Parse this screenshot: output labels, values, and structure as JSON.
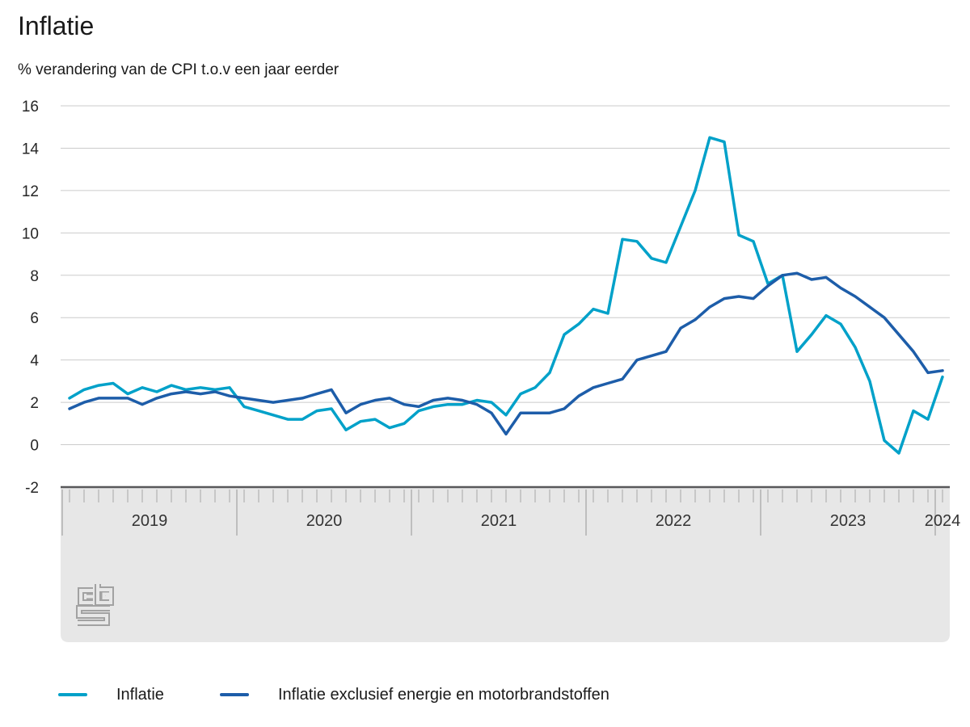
{
  "title": "Inflatie",
  "subtitle": "% verandering van de CPI t.o.v een jaar eerder",
  "source_logo_icon": "cbs-logo",
  "legend": {
    "position": "bottom",
    "items": [
      {
        "label": "Inflatie",
        "color": "#00a1c9"
      },
      {
        "label": "Inflatie exclusief energie en motorbrandstoffen",
        "color": "#1d5da9"
      }
    ]
  },
  "chart_data": {
    "type": "line",
    "title": "Inflatie",
    "subtitle": "% verandering van de CPI t.o.v een jaar eerder",
    "xlabel": "",
    "ylabel": "%",
    "ylim": [
      -2,
      16
    ],
    "y_ticks": [
      16,
      14,
      12,
      10,
      8,
      6,
      4,
      2,
      0,
      -2
    ],
    "grid": "horizontal",
    "x_unit": "month",
    "x_start": "2019-01",
    "x_end": "2024-01",
    "year_labels": [
      "2019",
      "2020",
      "2021",
      "2022",
      "2023",
      "2024"
    ],
    "legend_position": "bottom",
    "series": [
      {
        "name": "Inflatie",
        "color": "#00a1c9",
        "values": [
          2.2,
          2.6,
          2.8,
          2.9,
          2.4,
          2.7,
          2.5,
          2.8,
          2.6,
          2.7,
          2.6,
          2.7,
          1.8,
          1.6,
          1.4,
          1.2,
          1.2,
          1.6,
          1.7,
          0.7,
          1.1,
          1.2,
          0.8,
          1.0,
          1.6,
          1.8,
          1.9,
          1.9,
          2.1,
          2.0,
          1.4,
          2.4,
          2.7,
          3.4,
          5.2,
          5.7,
          6.4,
          6.2,
          9.7,
          9.6,
          8.8,
          8.6,
          10.3,
          12.0,
          14.5,
          14.3,
          9.9,
          9.6,
          7.6,
          8.0,
          4.4,
          5.2,
          6.1,
          5.7,
          4.6,
          3.0,
          0.2,
          -0.4,
          1.6,
          1.2,
          3.2
        ]
      },
      {
        "name": "Inflatie exclusief energie en motorbrandstoffen",
        "color": "#1d5da9",
        "values": [
          1.7,
          2.0,
          2.2,
          2.2,
          2.2,
          1.9,
          2.2,
          2.4,
          2.5,
          2.4,
          2.5,
          2.3,
          2.2,
          2.1,
          2.0,
          2.1,
          2.2,
          2.4,
          2.6,
          1.5,
          1.9,
          2.1,
          2.2,
          1.9,
          1.8,
          2.1,
          2.2,
          2.1,
          1.9,
          1.5,
          0.5,
          1.5,
          1.5,
          1.5,
          1.7,
          2.3,
          2.7,
          2.9,
          3.1,
          4.0,
          4.2,
          4.4,
          5.5,
          5.9,
          6.5,
          6.9,
          7.0,
          6.9,
          7.5,
          8.0,
          8.1,
          7.8,
          7.9,
          7.4,
          7.0,
          6.5,
          6.0,
          5.2,
          4.4,
          3.4,
          3.5
        ]
      }
    ]
  }
}
